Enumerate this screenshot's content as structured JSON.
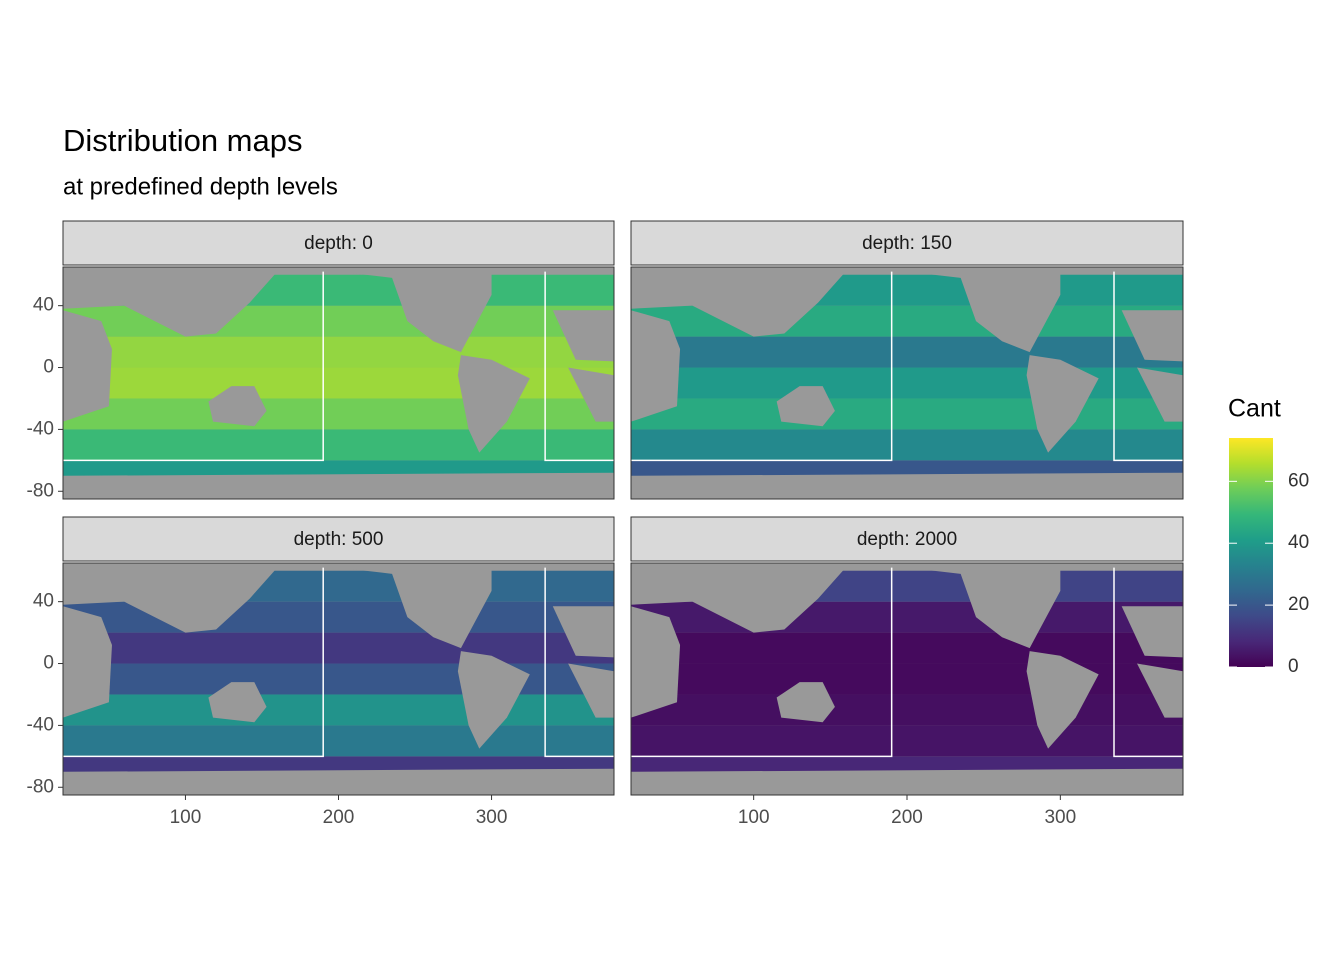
{
  "chart_data": {
    "type": "heatmap",
    "title": "Distribution maps",
    "subtitle": "at predefined depth levels",
    "legend_title": "Cant",
    "colorscale": "viridis",
    "clim": [
      0,
      74
    ],
    "cticks": [
      0,
      20,
      40,
      60
    ],
    "xlim": [
      20,
      380
    ],
    "ylim": [
      -85,
      65
    ],
    "xticks": [
      100,
      200,
      300
    ],
    "yticks": [
      -80,
      -40,
      0,
      40
    ],
    "y_edges": [
      -80,
      -60,
      -40,
      -20,
      0,
      20,
      40,
      60
    ],
    "facets": [
      {
        "label": "depth: 0",
        "values": [
          40,
          50,
          58,
          63,
          62,
          58,
          50
        ]
      },
      {
        "label": "depth: 150",
        "values": [
          20,
          35,
          45,
          40,
          30,
          45,
          40
        ]
      },
      {
        "label": "depth: 500",
        "values": [
          12,
          30,
          38,
          20,
          12,
          20,
          25
        ]
      },
      {
        "label": "depth: 2000",
        "values": [
          8,
          4,
          3,
          2,
          2,
          5,
          15
        ]
      }
    ]
  }
}
